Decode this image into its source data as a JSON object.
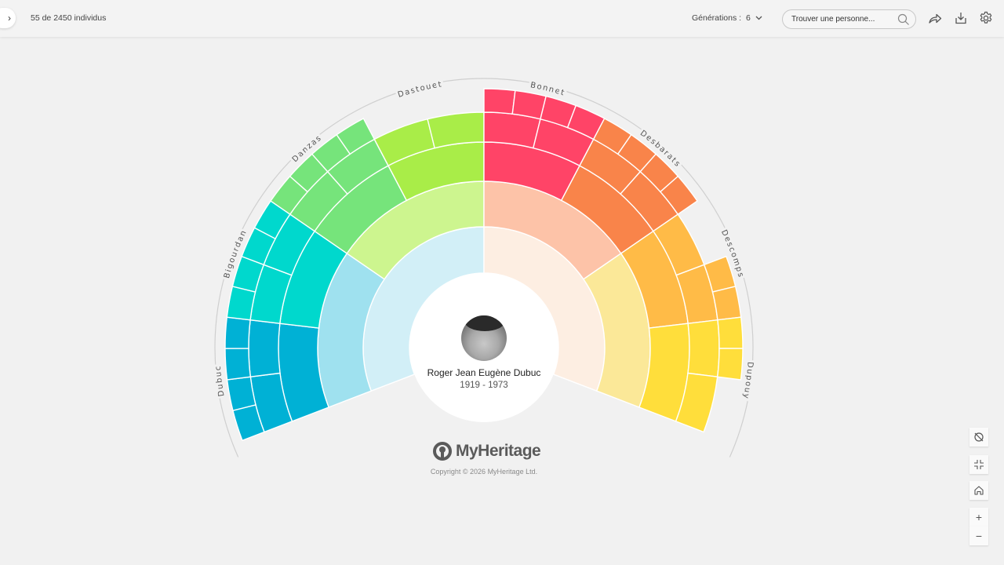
{
  "topbar": {
    "count_text": "55 de 2450 individus",
    "generations_label": "Générations :",
    "generations_value": "6",
    "search_placeholder": "Trouver une personne..."
  },
  "root_person": {
    "name": "Roger Jean Eugène Dubuc",
    "dates": "1919 - 1973"
  },
  "brand": {
    "logo_text": "MyHeritage",
    "copyright": "Copyright © 2026 MyHeritage Ltd."
  },
  "fan": {
    "branch_labels": [
      "Dubuc",
      "Bigourdan",
      "Danzas",
      "Dastouet",
      "Bonnet",
      "Desbarats",
      "Descomps",
      "Dupouy"
    ],
    "colors": {
      "gen1": [
        "#d2eff7",
        "#fdeee2"
      ],
      "gen2": [
        "#9fe1ef",
        "#cdf58f",
        "#fdc3a8",
        "#fbe898"
      ],
      "branches": [
        "#00b1d5",
        "#00d8cd",
        "#76e47b",
        "#a9ed48",
        "#ff4467",
        "#f9844a",
        "#ffbb47",
        "#ffde3b"
      ]
    },
    "present": {
      "gen3": [
        true,
        true,
        true,
        true,
        true,
        true,
        true,
        true
      ],
      "gen4": [
        true,
        true,
        true,
        true,
        true,
        true,
        true,
        true,
        true,
        true,
        true,
        true,
        true,
        true,
        true,
        true
      ],
      "gen5": [
        true,
        true,
        true,
        true,
        true,
        true,
        true,
        true,
        true,
        true,
        true,
        true,
        false,
        false,
        false,
        false,
        true,
        true,
        true,
        true,
        true,
        true,
        true,
        true,
        false,
        false,
        true,
        true,
        true,
        true,
        false,
        false
      ]
    }
  },
  "controls": {
    "zoom_in": "+",
    "zoom_out": "−"
  }
}
